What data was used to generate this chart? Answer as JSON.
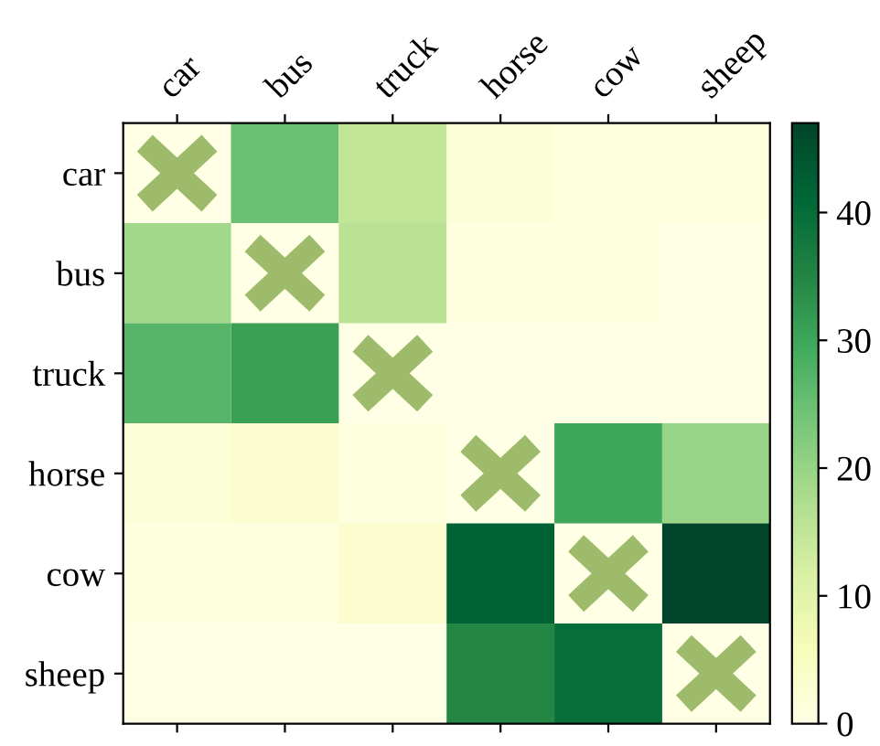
{
  "chart_data": {
    "type": "heatmap",
    "categories": [
      "car",
      "bus",
      "truck",
      "horse",
      "cow",
      "sheep"
    ],
    "y_categories": [
      "car",
      "bus",
      "truck",
      "horse",
      "cow",
      "sheep"
    ],
    "cells": [
      [
        null,
        25,
        15,
        2,
        1,
        1
      ],
      [
        19,
        null,
        16,
        1,
        1,
        0
      ],
      [
        27,
        31,
        null,
        0,
        0,
        0
      ],
      [
        2,
        3,
        1,
        null,
        30,
        20
      ],
      [
        1,
        1,
        3,
        42,
        null,
        47
      ],
      [
        0,
        0,
        0,
        35,
        40,
        null
      ]
    ],
    "clim": [
      0,
      47
    ],
    "cticks": [
      0,
      10,
      20,
      30,
      40
    ]
  }
}
